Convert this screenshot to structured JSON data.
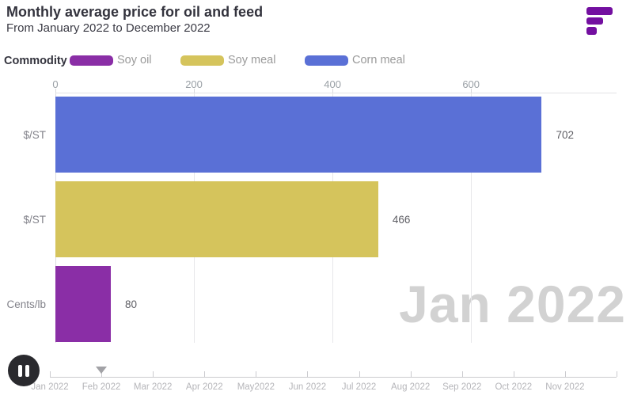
{
  "header": {
    "title": "Monthly average price for oil and feed",
    "subtitle": "From January 2022 to December 2022"
  },
  "logo": {
    "name": "flourish-logo",
    "color": "#730fa0"
  },
  "legend": {
    "title": "Commodity",
    "items": [
      {
        "label": "Soy oil",
        "color": "#8a2ea6"
      },
      {
        "label": "Soy meal",
        "color": "#d5c45c"
      },
      {
        "label": "Corn meal",
        "color": "#5a70d6"
      }
    ]
  },
  "chart_data": {
    "type": "bar",
    "orientation": "horizontal",
    "title": "Monthly average price for oil and feed",
    "subtitle": "From January 2022 to December 2022",
    "current_period": "Jan 2022",
    "categories": [
      "$/ST",
      "$/ST",
      "Cents/lb"
    ],
    "series": [
      {
        "name": "Corn meal",
        "unit": "$/ST",
        "value": 702,
        "color": "#5a70d6"
      },
      {
        "name": "Soy meal",
        "unit": "$/ST",
        "value": 466,
        "color": "#d5c45c"
      },
      {
        "name": "Soy oil",
        "unit": "Cents/lb",
        "value": 80,
        "color": "#8a2ea6"
      }
    ],
    "x_ticks": [
      0,
      200,
      400,
      600
    ],
    "xlim": [
      0,
      810
    ],
    "grid": true,
    "legend_position": "top"
  },
  "watermark": "Jan 2022",
  "timeline": {
    "labels": [
      "Jan 2022",
      "Feb 2022",
      "Mar 2022",
      "Apr 2022",
      "May2022",
      "Jun 2022",
      "Jul 2022",
      "Aug 2022",
      "Sep 2022",
      "Oct 2022",
      "Nov 2022",
      ""
    ],
    "playhead_index": 1
  },
  "controls": {
    "pause_icon": "pause"
  }
}
